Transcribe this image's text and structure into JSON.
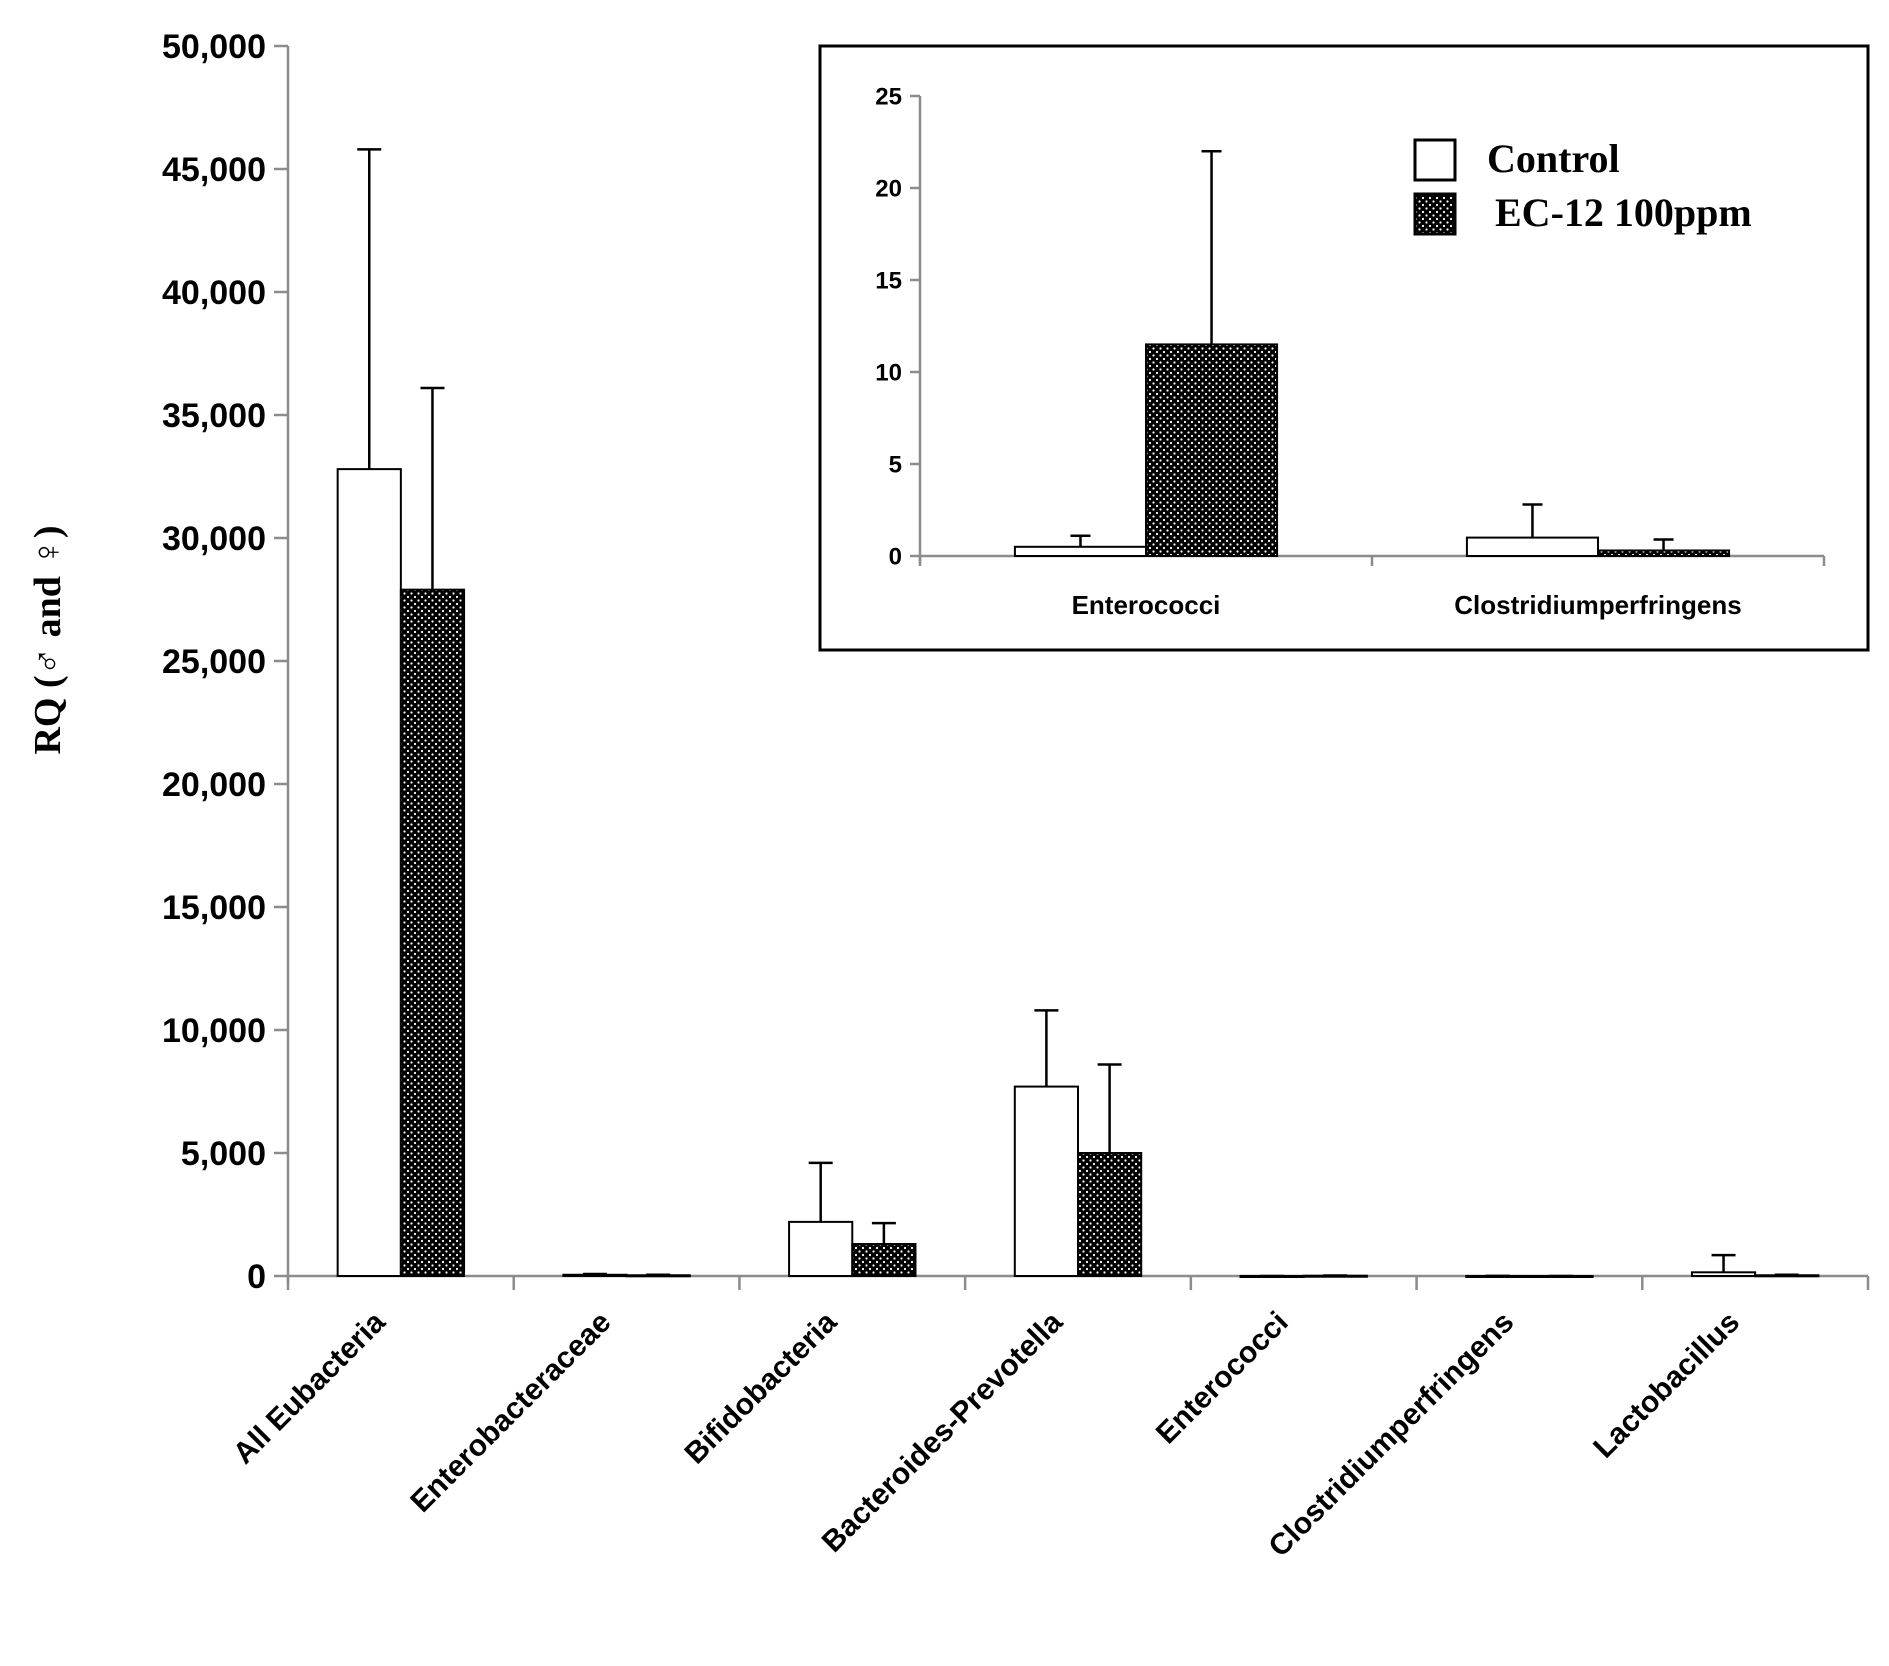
{
  "chart_data": [
    {
      "type": "bar",
      "title": "",
      "xlabel": "",
      "ylabel": "RQ (♂ and ♀)",
      "ylim": [
        0,
        50000
      ],
      "ytick_labels": [
        "0",
        "5,000",
        "10,000",
        "15,000",
        "20,000",
        "25,000",
        "30,000",
        "35,000",
        "40,000",
        "45,000",
        "50,000"
      ],
      "categories": [
        "All Eubacteria",
        "Enterobacteraceae",
        "Bifidobacteria",
        "Bacteroides-Prevotella",
        "Enterococci",
        "Clostridiumperfringens",
        "Lactobacillus"
      ],
      "series": [
        {
          "name": "Control",
          "values": [
            32800,
            50,
            2200,
            7700,
            0.5,
            1.0,
            150
          ],
          "errors": [
            13000,
            30,
            2400,
            3100,
            0.6,
            1.8,
            700
          ]
        },
        {
          "name": "EC-12 100ppm",
          "values": [
            27900,
            30,
            1300,
            5000,
            11.5,
            0.3,
            30
          ],
          "errors": [
            8200,
            20,
            850,
            3600,
            10.5,
            0.6,
            20
          ]
        }
      ]
    },
    {
      "type": "bar",
      "title": "",
      "xlabel": "",
      "ylabel": "",
      "ylim": [
        0,
        25
      ],
      "ytick_labels": [
        "0",
        "5",
        "10",
        "15",
        "20",
        "25"
      ],
      "categories": [
        "Enterococci",
        "Clostridiumperfringens"
      ],
      "series": [
        {
          "name": "Control",
          "values": [
            0.5,
            1.0
          ],
          "errors": [
            0.6,
            1.8
          ]
        },
        {
          "name": "EC-12 100ppm",
          "values": [
            11.5,
            0.3
          ],
          "errors": [
            10.5,
            0.6
          ]
        }
      ],
      "legend": {
        "placement": "top-right",
        "entries": [
          "Control",
          "EC-12 100ppm"
        ]
      }
    }
  ],
  "colors": {
    "control": "#ffffff",
    "treatment": "#000000",
    "axis": "#8c8c8c"
  }
}
